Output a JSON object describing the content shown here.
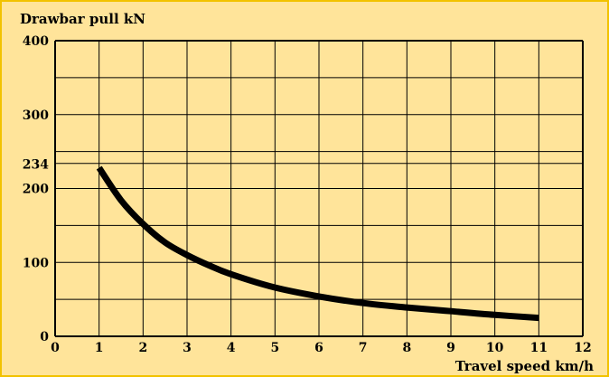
{
  "chart_data": {
    "type": "line",
    "ylabel": "Drawbar pull kN",
    "xlabel": "Travel speed km/h",
    "xlim": [
      0,
      12
    ],
    "ylim": [
      0,
      400
    ],
    "x_ticks": [
      "0",
      "1",
      "2",
      "3",
      "4",
      "5",
      "6",
      "7",
      "8",
      "9",
      "10",
      "11",
      "12"
    ],
    "y_ticks": [
      "0",
      "100",
      "200",
      "234",
      "300",
      "400"
    ],
    "grid": true,
    "colors": {
      "background": "#ffe49a",
      "border": "#f2c200",
      "grid": "#000000",
      "curve": "#000000"
    },
    "series": [
      {
        "x": [
          1.0,
          1.5,
          2.0,
          2.5,
          3.0,
          3.5,
          4.0,
          5.0,
          6.0,
          7.0,
          8.0,
          9.0,
          10.0,
          11.0
        ],
        "values": [
          228,
          184,
          152,
          127,
          110,
          96,
          84,
          66,
          54,
          45,
          39,
          34,
          29,
          25
        ]
      }
    ]
  }
}
